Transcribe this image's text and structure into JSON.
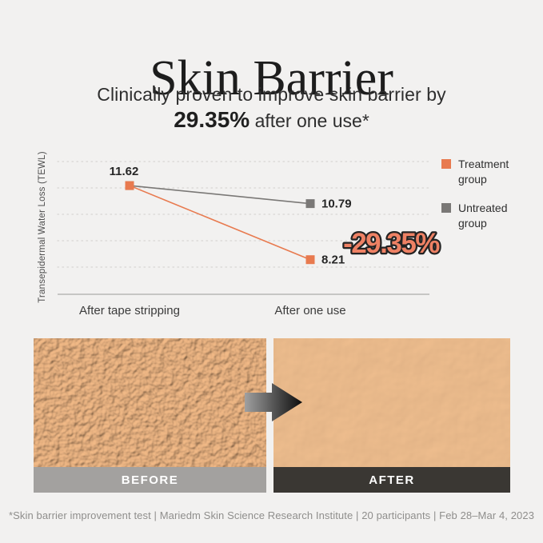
{
  "header": {
    "title": "Skin Barrier",
    "subtitle_line1": "Clinically proven to improve skin barrier by",
    "subtitle_highlight": "29.35%",
    "subtitle_rest": "after one use*"
  },
  "chart_data": {
    "type": "line",
    "title": "",
    "xlabel": "",
    "ylabel": "Transepidermal Water Loss (TEWL)",
    "categories": [
      "After tape stripping",
      "After one use"
    ],
    "series": [
      {
        "name": "Treatment group",
        "values": [
          11.62,
          8.21
        ],
        "color": "#e87a4f"
      },
      {
        "name": "Untreated group",
        "values": [
          11.62,
          10.79
        ],
        "color": "#7a7876"
      }
    ],
    "annotation": "-29.35%",
    "annotation_color": "#ee8164",
    "ylim": [
      7.5,
      12.8
    ],
    "grid": true,
    "legend_position": "right",
    "marker": "square"
  },
  "comparison": {
    "before_label": "BEFORE",
    "after_label": "AFTER"
  },
  "footer": {
    "note": "*Skin barrier improvement test | Mariedm Skin Science Research Institute | 20 participants | Feb 28–Mar 4, 2023"
  },
  "colors": {
    "background": "#f2f1f0",
    "accent_orange": "#e87a4f",
    "neutral_gray": "#7a7876",
    "before_bar": "#a3a19f",
    "after_bar": "#3a3733"
  }
}
